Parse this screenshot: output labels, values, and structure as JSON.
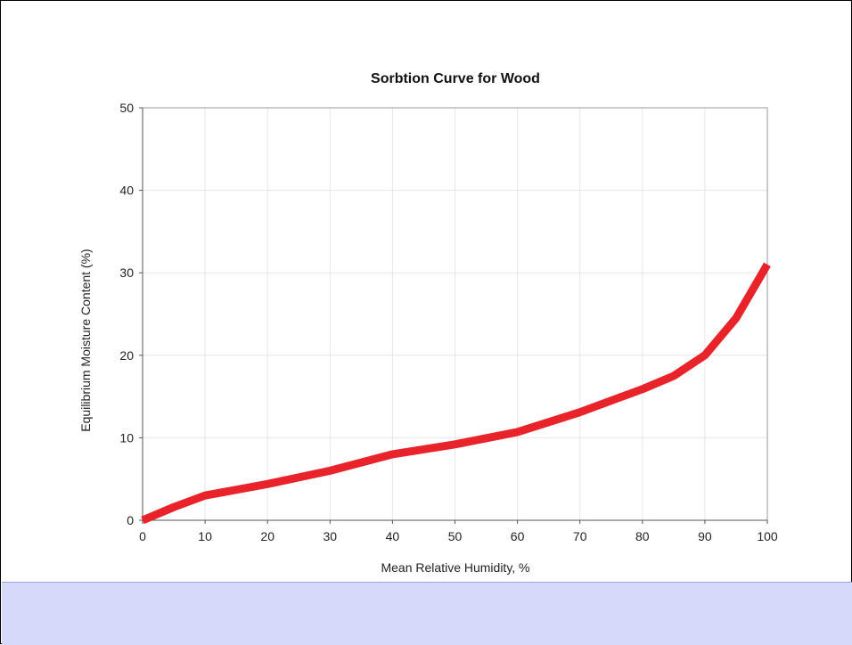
{
  "chart_data": {
    "type": "line",
    "title": "Sorbtion Curve for Wood",
    "xlabel": "Mean Relative Humidity, %",
    "ylabel": "Equilibrium Moisture Content (%)",
    "xlim": [
      0,
      100
    ],
    "ylim": [
      0,
      50
    ],
    "xticks": [
      "0",
      "10",
      "20",
      "30",
      "40",
      "50",
      "60",
      "70",
      "80",
      "90",
      "100"
    ],
    "yticks": [
      "0",
      "10",
      "20",
      "30",
      "40",
      "50"
    ],
    "grid": true,
    "series": [
      {
        "color": "#e8232a",
        "x": [
          0,
          5,
          10,
          20,
          30,
          40,
          50,
          60,
          65,
          70,
          75,
          80,
          85,
          90,
          95,
          100
        ],
        "y": [
          0,
          1.6,
          3,
          4.4,
          6,
          8,
          9.2,
          10.7,
          11.9,
          13.1,
          14.5,
          15.9,
          17.5,
          20,
          24.5,
          31
        ]
      }
    ]
  }
}
